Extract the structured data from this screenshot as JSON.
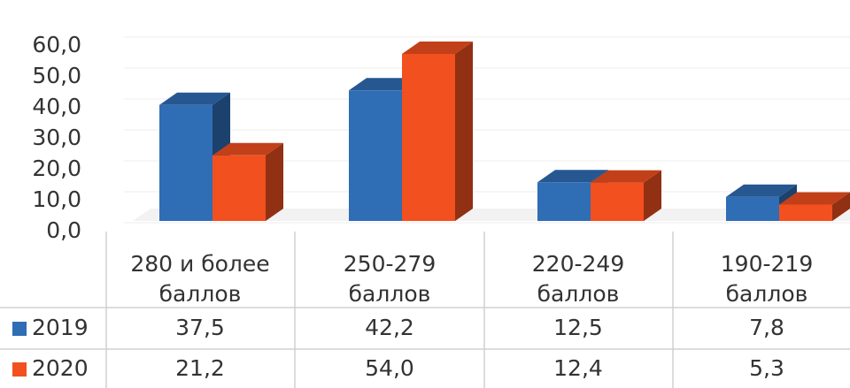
{
  "chart_data": {
    "type": "bar3d",
    "categories": [
      "280 и более баллов",
      "250-279 баллов",
      "220-249 баллов",
      "190-219 баллов"
    ],
    "series": [
      {
        "name": "2019",
        "color": "#2f6db5",
        "values": [
          37.5,
          42.2,
          12.5,
          7.8
        ],
        "value_labels": [
          "37,5",
          "42,2",
          "12,5",
          "7,8"
        ]
      },
      {
        "name": "2020",
        "color": "#f2501f",
        "values": [
          21.2,
          54.0,
          12.4,
          5.3
        ],
        "value_labels": [
          "21,2",
          "54,0",
          "12,4",
          "5,3"
        ]
      }
    ],
    "ylim": [
      0,
      60
    ],
    "yticks": [
      {
        "value": 0,
        "label": "0,0"
      },
      {
        "value": 10,
        "label": "10,0"
      },
      {
        "value": 20,
        "label": "20,0"
      },
      {
        "value": 30,
        "label": "30,0"
      },
      {
        "value": 40,
        "label": "40,0"
      },
      {
        "value": 50,
        "label": "50,0"
      },
      {
        "value": 60,
        "label": "60,0"
      }
    ],
    "grid": true
  }
}
